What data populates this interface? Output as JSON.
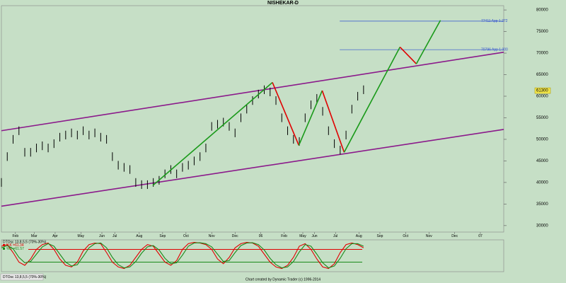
{
  "chart_data": [
    {
      "type": "ohlc",
      "title": "NISHEKAR-D",
      "x": [
        0,
        0.25,
        0.5,
        0.75,
        1,
        1.25,
        1.5,
        1.75,
        2,
        2.25,
        2.5,
        2.75,
        3,
        3.25,
        3.5,
        3.75,
        4,
        4.25,
        4.5,
        4.75,
        5,
        5.25,
        5.5,
        5.75,
        6,
        6.25,
        6.5,
        6.75,
        7,
        7.25,
        7.5,
        7.75,
        8,
        8.25,
        8.5,
        8.75,
        9,
        9.25,
        9.5,
        9.75,
        10,
        10.25,
        10.5,
        10.75,
        11,
        11.25,
        11.5,
        11.75,
        12,
        12.25,
        12.5,
        12.75,
        13,
        13.25,
        13.5,
        13.75,
        14,
        14.25,
        14.5,
        14.75,
        15,
        15.25,
        15.5
      ],
      "high": [
        41000,
        47000,
        51000,
        53000,
        48000,
        48000,
        49000,
        49500,
        49000,
        50000,
        51500,
        52000,
        52500,
        52000,
        53000,
        52000,
        52500,
        51500,
        51000,
        47000,
        45000,
        44500,
        44000,
        41000,
        40500,
        40500,
        41000,
        41500,
        43000,
        44000,
        43000,
        44500,
        45000,
        46000,
        47000,
        49000,
        54000,
        54500,
        55000,
        54000,
        52500,
        56000,
        58000,
        60000,
        61500,
        62500,
        62000,
        60000,
        56000,
        53000,
        51000,
        50500,
        56000,
        59000,
        60500,
        57500,
        53000,
        50000,
        48500,
        52000,
        58000,
        61000,
        62500
      ],
      "low": [
        39000,
        45000,
        49000,
        51000,
        46000,
        46000,
        47000,
        47500,
        47000,
        48000,
        49500,
        50000,
        50500,
        50000,
        51000,
        50000,
        50500,
        49500,
        49000,
        45000,
        43000,
        42500,
        42000,
        39000,
        38500,
        38500,
        39000,
        39500,
        41000,
        42000,
        41000,
        42500,
        43000,
        44000,
        45000,
        47000,
        52000,
        52500,
        53000,
        52000,
        50500,
        54000,
        56000,
        58000,
        59500,
        60500,
        60000,
        58000,
        54000,
        51000,
        49000,
        48500,
        54000,
        57000,
        58500,
        55500,
        51000,
        48000,
        46500,
        50000,
        56000,
        59000,
        60500
      ],
      "color": "#000000",
      "xlim": [
        0,
        21.5
      ],
      "ylim": [
        28500,
        81000
      ],
      "yticks": [
        80000,
        75000,
        70000,
        65000,
        60000,
        55000,
        50000,
        45000,
        40000,
        35000,
        30000
      ],
      "xticks": [
        {
          "value": 0.6,
          "label": "Feb"
        },
        {
          "value": 1.4,
          "label": "Mar"
        },
        {
          "value": 2.3,
          "label": "Apr"
        },
        {
          "value": 3.4,
          "label": "May"
        },
        {
          "value": 4.3,
          "label": "Jun"
        },
        {
          "value": 4.85,
          "label": "Jul"
        },
        {
          "value": 5.9,
          "label": "Aug"
        },
        {
          "value": 6.9,
          "label": "Sep"
        },
        {
          "value": 7.9,
          "label": "Oct"
        },
        {
          "value": 9,
          "label": "Nov"
        },
        {
          "value": 10,
          "label": "Dec"
        },
        {
          "value": 11.1,
          "label": "06"
        },
        {
          "value": 12.1,
          "label": "Feb"
        },
        {
          "value": 12.9,
          "label": "May"
        },
        {
          "value": 13.4,
          "label": "Jun"
        },
        {
          "value": 14.3,
          "label": "Jul"
        },
        {
          "value": 15.3,
          "label": "Aug"
        },
        {
          "value": 16.2,
          "label": "Sep"
        },
        {
          "value": 17.3,
          "label": "Oct"
        },
        {
          "value": 18.3,
          "label": "Nov"
        },
        {
          "value": 19.4,
          "label": "Dec"
        },
        {
          "value": 20.5,
          "label": "07"
        }
      ],
      "channel": [
        {
          "x": [
            0,
            21.5
          ],
          "values": [
            52000,
            70200
          ],
          "color": "#8b1a8b"
        },
        {
          "x": [
            0,
            21.5
          ],
          "values": [
            34500,
            52300
          ],
          "color": "#8b1a8b"
        }
      ],
      "zigzag": [
        {
          "x": [
            6.48,
            11.6
          ],
          "values": [
            39300,
            63200
          ],
          "color": "#1a9a1a"
        },
        {
          "x": [
            11.6,
            12.73
          ],
          "values": [
            63200,
            48600
          ],
          "color": "#e00000"
        },
        {
          "x": [
            12.73,
            13.73
          ],
          "values": [
            48600,
            61300
          ],
          "color": "#1a9a1a"
        },
        {
          "x": [
            13.73,
            14.67
          ],
          "values": [
            61300,
            47000
          ],
          "color": "#e00000"
        },
        {
          "x": [
            14.67,
            17.06
          ],
          "values": [
            47000,
            71400
          ],
          "color": "#1a9a1a"
        },
        {
          "x": [
            17.06,
            17.76
          ],
          "values": [
            71400,
            67500
          ],
          "color": "#e00000"
        },
        {
          "x": [
            17.76,
            18.79
          ],
          "values": [
            67500,
            77600
          ],
          "color": "#1a9a1a"
        }
      ],
      "levels": [
        {
          "value": 77411,
          "label": "77411 App 1.272",
          "x": [
            14.48,
            21.5
          ],
          "color": "#3050d0"
        },
        {
          "value": 70796,
          "label": "70796 App 1.000",
          "x": [
            14.48,
            21.5
          ],
          "color": "#3050d0"
        }
      ],
      "last_price": 61300
    },
    {
      "type": "line",
      "title": "DTOsc 13,8,5,5 (70%-30%)",
      "x": [
        0,
        0.25,
        0.5,
        0.75,
        1,
        1.25,
        1.5,
        1.75,
        2,
        2.25,
        2.5,
        2.75,
        3,
        3.25,
        3.5,
        3.75,
        4,
        4.25,
        4.5,
        4.75,
        5,
        5.25,
        5.5,
        5.75,
        6,
        6.25,
        6.5,
        6.75,
        7,
        7.25,
        7.5,
        7.75,
        8,
        8.25,
        8.5,
        8.75,
        9,
        9.25,
        9.5,
        9.75,
        10,
        10.25,
        10.5,
        10.75,
        11,
        11.25,
        11.5,
        11.75,
        12,
        12.25,
        12.5,
        12.75,
        13,
        13.25,
        13.5,
        13.75,
        14,
        14.25,
        14.5,
        14.75,
        15,
        15.25,
        15.5
      ],
      "xlim": [
        0,
        21.5
      ],
      "ylim": [
        0,
        100
      ],
      "series": [
        {
          "name": "%K =61.34",
          "color": "#e00000",
          "values": [
            80,
            85,
            60,
            30,
            20,
            40,
            70,
            85,
            90,
            70,
            40,
            20,
            15,
            30,
            65,
            85,
            90,
            88,
            60,
            30,
            15,
            10,
            20,
            45,
            70,
            85,
            80,
            55,
            30,
            20,
            35,
            70,
            88,
            92,
            90,
            85,
            70,
            40,
            25,
            45,
            75,
            88,
            92,
            90,
            80,
            55,
            30,
            15,
            10,
            20,
            45,
            80,
            88,
            70,
            40,
            15,
            10,
            25,
            60,
            85,
            90,
            85,
            75
          ]
        },
        {
          "name": "%D =61.57",
          "color": "#1a8a1a",
          "values": [
            75,
            82,
            72,
            45,
            28,
            32,
            55,
            78,
            88,
            80,
            55,
            30,
            18,
            22,
            48,
            75,
            88,
            90,
            75,
            45,
            22,
            12,
            15,
            32,
            58,
            78,
            82,
            68,
            42,
            25,
            28,
            52,
            80,
            90,
            91,
            88,
            78,
            55,
            32,
            35,
            60,
            82,
            90,
            91,
            85,
            68,
            42,
            22,
            12,
            15,
            32,
            62,
            85,
            80,
            55,
            28,
            12,
            18,
            42,
            72,
            88,
            88,
            80
          ]
        }
      ],
      "levels": [
        {
          "value": 70,
          "color": "#e00000"
        },
        {
          "value": 30,
          "color": "#1a8a1a"
        }
      ],
      "tab": "DTOsc 13,8,5,5 (70%-30%)",
      "footer": "Chart created by Dynamic Trader (c) 1996-2014"
    }
  ]
}
